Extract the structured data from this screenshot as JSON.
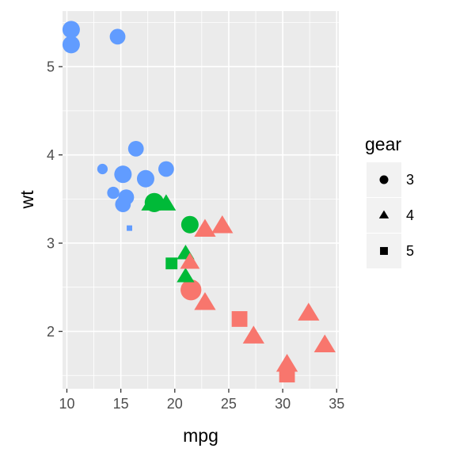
{
  "chart_data": {
    "type": "scatter",
    "title": "",
    "xlabel": "mpg",
    "ylabel": "wt",
    "xlim": [
      9.6,
      35.2
    ],
    "ylim": [
      1.35,
      5.63
    ],
    "x_ticks": [
      10,
      15,
      20,
      25,
      30,
      35
    ],
    "y_ticks": [
      2,
      3,
      4,
      5
    ],
    "grid": true,
    "shape_legend": {
      "title": "gear",
      "placement": "right",
      "entries": [
        {
          "label": "3",
          "shape": "circle"
        },
        {
          "label": "4",
          "shape": "triangle"
        },
        {
          "label": "5",
          "shape": "square"
        }
      ]
    },
    "colors": {
      "blue": "#619cff",
      "green": "#00ba38",
      "red": "#f8766d"
    },
    "points": [
      {
        "x": 10.4,
        "y": 5.42,
        "gear": 3,
        "color": "blue",
        "size": 1.0
      },
      {
        "x": 10.4,
        "y": 5.25,
        "gear": 3,
        "color": "blue",
        "size": 1.0
      },
      {
        "x": 14.7,
        "y": 5.34,
        "gear": 3,
        "color": "blue",
        "size": 0.9
      },
      {
        "x": 16.4,
        "y": 4.07,
        "gear": 3,
        "color": "blue",
        "size": 0.9
      },
      {
        "x": 19.2,
        "y": 3.84,
        "gear": 3,
        "color": "blue",
        "size": 0.9
      },
      {
        "x": 13.3,
        "y": 3.84,
        "gear": 3,
        "color": "blue",
        "size": 0.6
      },
      {
        "x": 15.2,
        "y": 3.78,
        "gear": 3,
        "color": "blue",
        "size": 1.0
      },
      {
        "x": 17.3,
        "y": 3.73,
        "gear": 3,
        "color": "blue",
        "size": 1.0
      },
      {
        "x": 14.3,
        "y": 3.57,
        "gear": 3,
        "color": "blue",
        "size": 0.7
      },
      {
        "x": 15.5,
        "y": 3.52,
        "gear": 3,
        "color": "blue",
        "size": 0.9
      },
      {
        "x": 15.2,
        "y": 3.44,
        "gear": 3,
        "color": "blue",
        "size": 0.9
      },
      {
        "x": 18.1,
        "y": 3.46,
        "gear": 3,
        "color": "green",
        "size": 1.1
      },
      {
        "x": 21.4,
        "y": 3.21,
        "gear": 3,
        "color": "green",
        "size": 1.0
      },
      {
        "x": 21.5,
        "y": 2.47,
        "gear": 3,
        "color": "red",
        "size": 1.2
      },
      {
        "x": 15.8,
        "y": 3.17,
        "gear": 5,
        "color": "blue",
        "size": 0.35
      },
      {
        "x": 19.7,
        "y": 2.77,
        "gear": 5,
        "color": "green",
        "size": 0.75
      },
      {
        "x": 26.0,
        "y": 2.14,
        "gear": 5,
        "color": "red",
        "size": 1.0
      },
      {
        "x": 30.4,
        "y": 1.51,
        "gear": 5,
        "color": "red",
        "size": 1.0
      },
      {
        "x": 17.8,
        "y": 3.44,
        "gear": 4,
        "color": "green",
        "size": 1.0
      },
      {
        "x": 19.2,
        "y": 3.44,
        "gear": 4,
        "color": "green",
        "size": 1.0
      },
      {
        "x": 21.0,
        "y": 2.62,
        "gear": 4,
        "color": "green",
        "size": 0.9
      },
      {
        "x": 21.0,
        "y": 2.88,
        "gear": 4,
        "color": "green",
        "size": 0.9
      },
      {
        "x": 21.4,
        "y": 2.78,
        "gear": 4,
        "color": "red",
        "size": 1.0
      },
      {
        "x": 22.8,
        "y": 3.15,
        "gear": 4,
        "color": "red",
        "size": 1.1
      },
      {
        "x": 24.4,
        "y": 3.19,
        "gear": 4,
        "color": "red",
        "size": 1.1
      },
      {
        "x": 22.8,
        "y": 2.32,
        "gear": 4,
        "color": "red",
        "size": 1.1
      },
      {
        "x": 27.3,
        "y": 1.94,
        "gear": 4,
        "color": "red",
        "size": 1.1
      },
      {
        "x": 32.4,
        "y": 2.2,
        "gear": 4,
        "color": "red",
        "size": 1.1
      },
      {
        "x": 30.4,
        "y": 1.62,
        "gear": 4,
        "color": "red",
        "size": 1.1
      },
      {
        "x": 33.9,
        "y": 1.84,
        "gear": 4,
        "color": "red",
        "size": 1.1
      }
    ]
  }
}
